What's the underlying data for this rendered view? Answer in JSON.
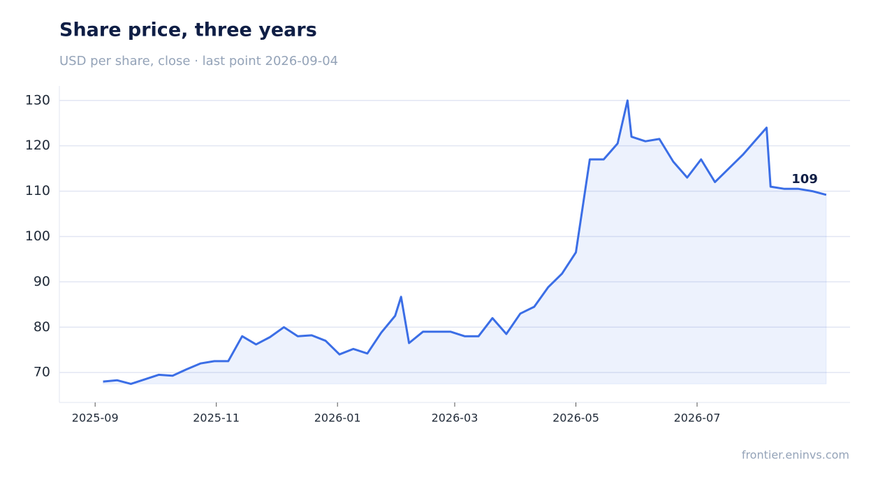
{
  "chart_data": {
    "type": "line",
    "title": "Share price, three years",
    "subtitle": "USD per share, close · last point 2026-09-04",
    "source": "frontier.eninvs.com",
    "annotation": "109",
    "x": [
      "2025-09-05",
      "2025-09-12",
      "2025-09-19",
      "2025-09-26",
      "2025-10-03",
      "2025-10-10",
      "2025-10-17",
      "2025-10-24",
      "2025-10-31",
      "2025-11-07",
      "2025-11-14",
      "2025-11-21",
      "2025-11-28",
      "2025-12-05",
      "2025-12-12",
      "2025-12-19",
      "2025-12-26",
      "2026-01-02",
      "2026-01-09",
      "2026-01-16",
      "2026-01-23",
      "2026-01-30",
      "2026-02-02",
      "2026-02-06",
      "2026-02-13",
      "2026-02-20",
      "2026-02-27",
      "2026-03-06",
      "2026-03-13",
      "2026-03-20",
      "2026-03-27",
      "2026-04-03",
      "2026-04-10",
      "2026-04-17",
      "2026-04-24",
      "2026-05-01",
      "2026-05-08",
      "2026-05-15",
      "2026-05-22",
      "2026-05-27",
      "2026-05-29",
      "2026-06-05",
      "2026-06-12",
      "2026-06-19",
      "2026-06-26",
      "2026-07-03",
      "2026-07-10",
      "2026-07-17",
      "2026-07-24",
      "2026-07-31",
      "2026-08-05",
      "2026-08-07",
      "2026-08-14",
      "2026-08-21",
      "2026-08-28",
      "2026-09-04"
    ],
    "series": [
      {
        "name": "Close",
        "color": "#3b6ee6",
        "values": [
          68,
          68.3,
          67.5,
          68.5,
          69.5,
          69.3,
          70.7,
          72,
          72.5,
          72.5,
          78,
          76.2,
          77.8,
          80,
          78,
          78.2,
          77,
          74,
          75.2,
          74.2,
          78.8,
          82.5,
          86.7,
          76.5,
          79,
          79,
          79,
          78,
          78,
          82,
          78.5,
          83,
          84.5,
          88.8,
          91.8,
          96.5,
          117,
          117,
          120.5,
          130,
          122,
          121,
          121.5,
          116.5,
          113,
          117,
          112,
          115,
          118,
          121.5,
          124,
          111,
          110.5,
          110.5,
          110,
          109.2
        ]
      }
    ],
    "xlim": [
      "2025-08-14",
      "2026-09-16"
    ],
    "xticks": [
      "2025-09",
      "2025-11",
      "2026-01",
      "2026-03",
      "2026-05",
      "2026-07"
    ],
    "ylim": [
      63.4,
      133.2
    ],
    "yticks": [
      70,
      80,
      90,
      100,
      110,
      120,
      130
    ],
    "grid": true
  }
}
